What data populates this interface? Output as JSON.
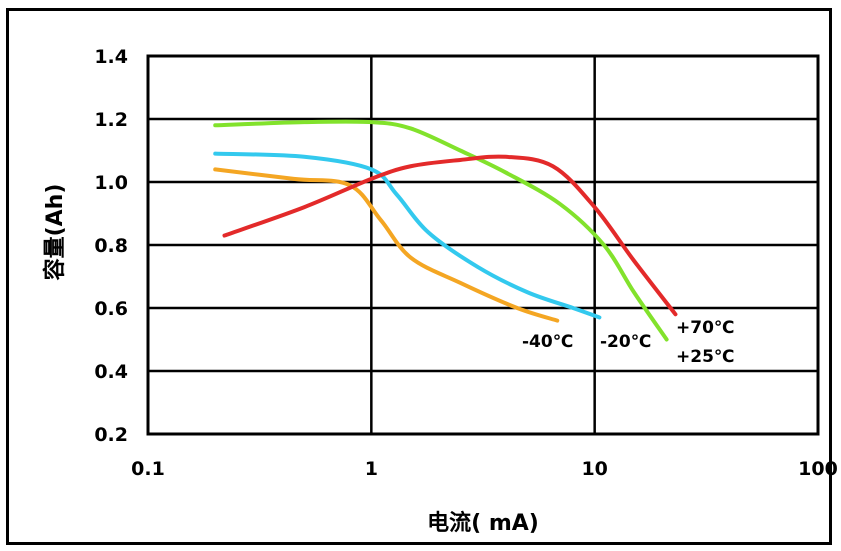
{
  "chart_data": {
    "type": "line",
    "xlabel": "电流( mA)",
    "ylabel": "容量(Ah)",
    "x_scale": "log",
    "xlim": [
      0.1,
      100
    ],
    "ylim": [
      0.2,
      1.4
    ],
    "x_ticks": [
      "0.1",
      "1",
      "10",
      "100"
    ],
    "y_ticks": [
      "0.2",
      "0.4",
      "0.6",
      "0.8",
      "1.0",
      "1.2",
      "1.4"
    ],
    "grid": true,
    "series": [
      {
        "name": "-40℃",
        "color": "#f4a623",
        "x": [
          0.2,
          0.45,
          0.8,
          1.1,
          1.5,
          2.5,
          4.5,
          6.8
        ],
        "y": [
          1.04,
          1.01,
          0.99,
          0.88,
          0.76,
          0.68,
          0.6,
          0.56
        ]
      },
      {
        "name": "-20℃",
        "color": "#33c9ee",
        "x": [
          0.2,
          0.5,
          1.0,
          1.3,
          1.8,
          3.0,
          5.0,
          8.0,
          10.5
        ],
        "y": [
          1.09,
          1.08,
          1.04,
          0.96,
          0.84,
          0.73,
          0.65,
          0.6,
          0.57
        ]
      },
      {
        "name": "+25℃",
        "color": "#82e22c",
        "x": [
          0.2,
          0.5,
          1.0,
          1.5,
          2.5,
          4.0,
          7.0,
          11.0,
          15.0,
          21.0
        ],
        "y": [
          1.18,
          1.19,
          1.19,
          1.17,
          1.1,
          1.03,
          0.93,
          0.8,
          0.65,
          0.5
        ]
      },
      {
        "name": "+70℃",
        "color": "#e32a2a",
        "x": [
          0.22,
          0.5,
          1.0,
          1.5,
          2.5,
          4.0,
          6.5,
          10.0,
          15.0,
          23.0
        ],
        "y": [
          0.83,
          0.92,
          1.01,
          1.05,
          1.07,
          1.08,
          1.05,
          0.92,
          0.75,
          0.58
        ]
      }
    ]
  }
}
